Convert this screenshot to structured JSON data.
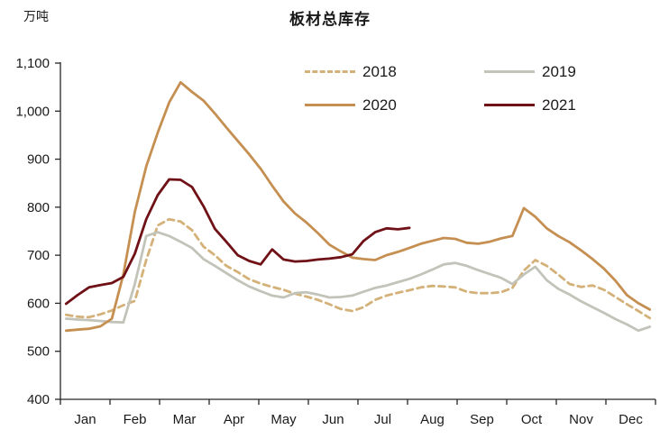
{
  "title": "板材总库存",
  "unit_label": "万吨",
  "chart_data": {
    "type": "line",
    "title": "板材总库存",
    "ylabel": "万吨",
    "x_axis_labels": [
      "Jan",
      "Feb",
      "Mar",
      "Apr",
      "May",
      "Jun",
      "Jul",
      "Aug",
      "Sep",
      "Oct",
      "Nov",
      "Dec"
    ],
    "x_unit": "week-of-year (52 weekly points per full year)",
    "ylim": [
      400,
      1100
    ],
    "y_ticks": [
      "400",
      "500",
      "600",
      "700",
      "800",
      "900",
      "1,000",
      "1,100"
    ],
    "grid": "off",
    "legend_position": "top-center, 2x2 grid",
    "axis_color": "#262626",
    "series": [
      {
        "name": "2018",
        "color": "#D4B178",
        "style": "dashed",
        "values": [
          576,
          572,
          571,
          577,
          585,
          596,
          605,
          690,
          762,
          775,
          770,
          752,
          718,
          700,
          678,
          665,
          650,
          641,
          634,
          628,
          620,
          614,
          607,
          598,
          588,
          584,
          592,
          607,
          616,
          622,
          627,
          633,
          636,
          635,
          633,
          624,
          621,
          621,
          623,
          632,
          668,
          690,
          678,
          660,
          640,
          634,
          637,
          628,
          613,
          598,
          584,
          569
        ]
      },
      {
        "name": "2019",
        "color": "#C2C3B9",
        "style": "solid",
        "values": [
          568,
          566,
          565,
          563,
          561,
          560,
          640,
          740,
          748,
          740,
          728,
          715,
          692,
          678,
          663,
          648,
          635,
          625,
          616,
          612,
          621,
          623,
          618,
          612,
          613,
          616,
          624,
          632,
          637,
          644,
          651,
          660,
          670,
          681,
          684,
          678,
          669,
          661,
          653,
          640,
          660,
          676,
          648,
          630,
          618,
          604,
          592,
          580,
          567,
          556,
          543,
          551
        ]
      },
      {
        "name": "2020",
        "color": "#C68F52",
        "style": "solid",
        "values": [
          543,
          545,
          547,
          552,
          568,
          660,
          790,
          885,
          955,
          1018,
          1060,
          1040,
          1022,
          995,
          966,
          938,
          910,
          880,
          845,
          812,
          787,
          768,
          746,
          722,
          708,
          695,
          692,
          690,
          700,
          707,
          715,
          724,
          730,
          736,
          734,
          726,
          724,
          728,
          735,
          740,
          798,
          780,
          756,
          740,
          727,
          710,
          692,
          672,
          647,
          617,
          600,
          587
        ]
      },
      {
        "name": "2021",
        "color": "#6F1116",
        "style": "solid",
        "values": [
          599,
          617,
          633,
          638,
          642,
          655,
          703,
          775,
          825,
          858,
          857,
          842,
          802,
          755,
          728,
          700,
          688,
          681,
          712,
          691,
          687,
          688,
          691,
          693,
          696,
          702,
          730,
          748,
          756,
          754,
          757
        ]
      }
    ]
  }
}
